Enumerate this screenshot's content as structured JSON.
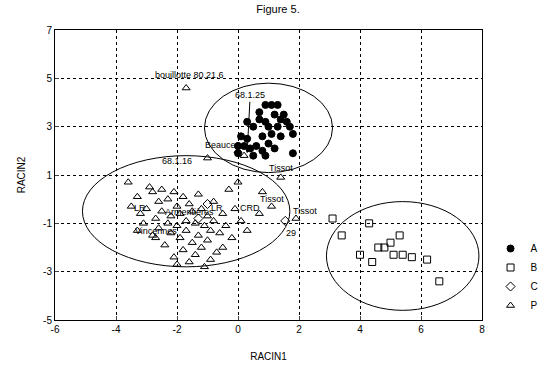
{
  "chart_data": {
    "type": "scatter",
    "title": "Figure 5.",
    "x_label": "RACIN1",
    "y_label": "RACIN2",
    "xlim": [
      -6,
      8
    ],
    "ylim": [
      -5,
      7
    ],
    "xticks": [
      -6,
      -4,
      -2,
      0,
      2,
      4,
      6,
      8
    ],
    "yticks": [
      -5,
      -3,
      -1,
      1,
      3,
      5,
      7
    ],
    "grid": true,
    "legend": "right",
    "series": [
      {
        "name": "A",
        "color": "#000000",
        "marker": "circle",
        "x": [
          0.7,
          0.9,
          1.1,
          1.3,
          1.2,
          0.9,
          1.5,
          1.6,
          1.3,
          1.1,
          0.8,
          1.0,
          1.4,
          1.8,
          1.7,
          0.5,
          0.3,
          0.1,
          0.2,
          0.4,
          0.6,
          0.8,
          1.0,
          1.2,
          0.5,
          0.9,
          0.0,
          1.8,
          0.3,
          0.7,
          1.4,
          0.0
        ],
        "y": [
          3.3,
          3.9,
          3.9,
          3.9,
          3.5,
          3.2,
          3.5,
          3.2,
          3.0,
          2.7,
          2.6,
          3.0,
          2.6,
          2.7,
          3.0,
          3.0,
          2.5,
          2.6,
          2.2,
          2.1,
          2.2,
          2.0,
          2.3,
          2.1,
          1.8,
          1.8,
          2.2,
          1.9,
          3.2,
          3.6,
          3.3,
          1.9
        ]
      },
      {
        "name": "B",
        "color": "#000000",
        "marker": "square-open",
        "x": [
          3.1,
          3.4,
          4.0,
          4.3,
          4.4,
          4.6,
          4.8,
          5.0,
          5.1,
          5.3,
          5.4,
          5.7,
          6.2,
          6.6
        ],
        "y": [
          -0.8,
          -1.5,
          -2.3,
          -1.0,
          -2.6,
          -2.0,
          -2.0,
          -1.8,
          -2.3,
          -1.5,
          -2.3,
          -2.4,
          -2.5,
          -3.4
        ]
      },
      {
        "name": "C",
        "color": "#000000",
        "marker": "diamond-open",
        "x": [
          1.55,
          -1.0,
          -1.3
        ],
        "y": [
          -0.9,
          -0.2,
          -0.8
        ]
      },
      {
        "name": "P",
        "color": "#000000",
        "marker": "triangle-up-open",
        "x": [
          -3.6,
          -3.5,
          -3.3,
          -3.2,
          -3.1,
          -3.0,
          -2.9,
          -2.8,
          -2.8,
          -2.7,
          -2.6,
          -2.6,
          -2.5,
          -2.5,
          -2.4,
          -2.3,
          -2.3,
          -2.2,
          -2.2,
          -2.1,
          -2.1,
          -2.0,
          -2.0,
          -1.9,
          -1.9,
          -1.8,
          -1.8,
          -1.7,
          -1.7,
          -1.6,
          -1.6,
          -1.5,
          -1.5,
          -1.4,
          -1.4,
          -1.3,
          -1.3,
          -1.2,
          -1.2,
          -1.1,
          -1.0,
          -1.0,
          -0.9,
          -0.9,
          -0.8,
          -0.8,
          -0.7,
          -0.6,
          -0.5,
          -0.5,
          -0.4,
          -0.3,
          -0.2,
          -0.1,
          0.0,
          0.1,
          0.3,
          -2.7,
          -3.3,
          -2.0,
          -1.1,
          -1.7,
          0.2,
          0.0,
          -1.0,
          1.4,
          0.7,
          1.1,
          1.9,
          0.8
        ],
        "y": [
          0.7,
          -0.3,
          0.1,
          -0.6,
          -1.0,
          -0.4,
          0.5,
          0.3,
          -1.5,
          -0.8,
          -0.1,
          -1.2,
          0.4,
          -0.5,
          -1.9,
          0.0,
          -1.0,
          -0.7,
          -1.4,
          0.3,
          -2.4,
          -0.3,
          -1.1,
          -0.6,
          -1.6,
          0.1,
          -2.1,
          -0.9,
          -1.3,
          -0.2,
          -2.6,
          -0.5,
          -1.8,
          -1.0,
          -2.3,
          0.2,
          -1.5,
          -0.4,
          -2.0,
          -1.1,
          -0.7,
          -1.7,
          -2.5,
          -1.3,
          -0.1,
          -0.9,
          -2.2,
          -1.4,
          -0.6,
          -2.0,
          -1.1,
          0.4,
          -1.6,
          -0.4,
          0.7,
          -0.9,
          -1.3,
          -1.6,
          -1.3,
          -2.7,
          -2.8,
          4.6,
          1.8,
          2.0,
          1.7,
          0.9,
          -0.6,
          -0.3,
          -0.8,
          0.3
        ]
      }
    ],
    "ellipses": [
      {
        "x0": -1.1,
        "x1": 3.1,
        "y0": 1.1,
        "y1": 4.8
      },
      {
        "x0": -5.1,
        "x1": 1.7,
        "y0": -2.8,
        "y1": 1.8
      },
      {
        "x0": 2.9,
        "x1": 7.9,
        "y0": -4.6,
        "y1": -0.1
      }
    ],
    "annotations": [
      {
        "text": "bouillotte 80.21.6",
        "x": -1.6,
        "y": 5.15
      },
      {
        "text": "68.1.25",
        "x": 0.4,
        "y": 4.3,
        "arrow_x": 0.3,
        "arrow_y": 1.9
      },
      {
        "text": "Beauce?",
        "x": -0.5,
        "y": 2.25
      },
      {
        "text": "68.1.16",
        "x": -2.0,
        "y": 1.6
      },
      {
        "text": "Tissot",
        "x": 1.4,
        "y": 1.3
      },
      {
        "text": "Tissot",
        "x": 1.1,
        "y": 0.0
      },
      {
        "text": "CRD",
        "x": 0.4,
        "y": -0.35
      },
      {
        "text": "Tissot",
        "x": 2.2,
        "y": -0.5
      },
      {
        "text": "29",
        "x": 1.75,
        "y": -1.4
      },
      {
        "text": "LR",
        "x": -3.2,
        "y": -0.35
      },
      {
        "text": "LR",
        "x": -0.7,
        "y": -0.35
      },
      {
        "text": "Armentières",
        "x": -1.6,
        "y": -0.55
      },
      {
        "text": "Vincennes",
        "x": -2.7,
        "y": -1.3
      }
    ]
  }
}
